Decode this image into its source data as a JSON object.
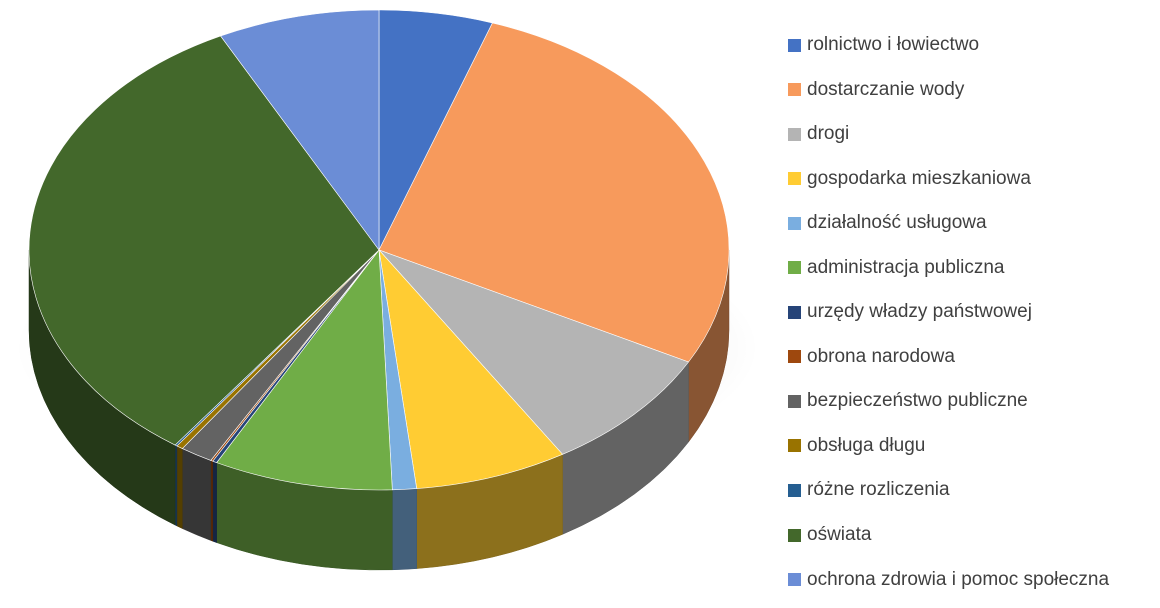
{
  "chart_data": {
    "type": "pie",
    "title": "",
    "style": "3d-tilted",
    "legend_position": "right",
    "slices": [
      {
        "label": "rolnictwo i łowiectwo",
        "value": 5.2,
        "color": "#4472c4"
      },
      {
        "label": "dostarczanie wody",
        "value": 27.2,
        "color": "#f79a5c"
      },
      {
        "label": "drogi",
        "value": 8.4,
        "color": "#b4b4b4"
      },
      {
        "label": "gospodarka mieszkaniowa",
        "value": 7.0,
        "color": "#ffcc33"
      },
      {
        "label": "działalność usługowa",
        "value": 1.1,
        "color": "#7aaee0"
      },
      {
        "label": "administracja publiczna",
        "value": 8.2,
        "color": "#70ad47"
      },
      {
        "label": "urzędy władzy państwowej",
        "value": 0.2,
        "color": "#264478"
      },
      {
        "label": "obrona narodowa",
        "value": 0.1,
        "color": "#9e480e"
      },
      {
        "label": "bezpieczeństwo publiczne",
        "value": 1.5,
        "color": "#636363"
      },
      {
        "label": "obsługa długu",
        "value": 0.3,
        "color": "#997300"
      },
      {
        "label": "różne rozliczenia",
        "value": 0.1,
        "color": "#255e91"
      },
      {
        "label": "oświata",
        "value": 32.3,
        "color": "#43682b"
      },
      {
        "label": "ochrona zdrowia i pomoc społeczna",
        "value": 7.4,
        "color": "#6b8dd6"
      }
    ]
  }
}
